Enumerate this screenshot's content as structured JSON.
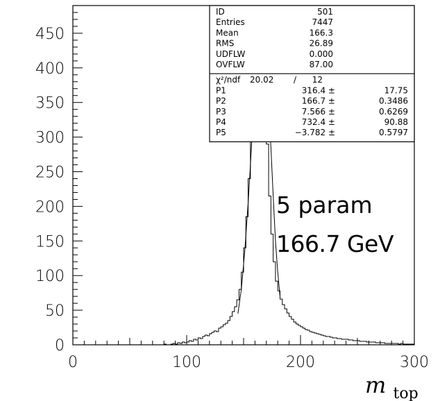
{
  "chart_data": {
    "type": "histogram",
    "x_axis": {
      "min": 0,
      "max": 300,
      "ticks": [
        "0",
        "100",
        "200",
        "300"
      ],
      "label_main": "m",
      "label_sub": "top"
    },
    "y_axis": {
      "min": 0,
      "max": 490,
      "ticks": [
        "0",
        "50",
        "100",
        "150",
        "200",
        "250",
        "300",
        "350",
        "400",
        "450"
      ]
    },
    "bin_width": 2,
    "bins_x_start": 0,
    "bin_counts": [
      0,
      0,
      0,
      0,
      0,
      0,
      0,
      0,
      0,
      0,
      0,
      0,
      0,
      0,
      0,
      0,
      0,
      0,
      0,
      0,
      0,
      0,
      0,
      0,
      0,
      0,
      0,
      0,
      0,
      0,
      0,
      0,
      0,
      0,
      0,
      0,
      0,
      0,
      0,
      0,
      1,
      0,
      0,
      1,
      2,
      1,
      3,
      2,
      4,
      3,
      4,
      6,
      5,
      8,
      7,
      10,
      9,
      12,
      14,
      13,
      16,
      18,
      20,
      19,
      24,
      26,
      29,
      31,
      35,
      41,
      48,
      55,
      65,
      80,
      105,
      140,
      185,
      240,
      300,
      360,
      405,
      418,
      385,
      440,
      362,
      290,
      215,
      160,
      120,
      92,
      78,
      66,
      58,
      52,
      46,
      41,
      37,
      33,
      30,
      28,
      26,
      24,
      22,
      21,
      19,
      18,
      17,
      16,
      15,
      14,
      13,
      12,
      12,
      11,
      10,
      10,
      9,
      9,
      8,
      8,
      8,
      7,
      7,
      6,
      6,
      6,
      5,
      5,
      5,
      4,
      4,
      4,
      4,
      3,
      3,
      3,
      3,
      2,
      2,
      2,
      2,
      2,
      2,
      1,
      2,
      1,
      1,
      1,
      1,
      1
    ],
    "fit_curve": {
      "x": [
        145,
        148,
        151,
        154,
        156,
        158,
        160,
        162,
        164,
        166,
        167,
        168,
        170,
        172,
        174,
        176,
        178,
        180,
        182
      ],
      "y": [
        45,
        80,
        135,
        205,
        260,
        318,
        365,
        395,
        412,
        418,
        417,
        412,
        392,
        350,
        285,
        215,
        150,
        105,
        70
      ]
    },
    "stats_box": {
      "rows": [
        {
          "label": "ID",
          "value": "501"
        },
        {
          "label": "Entries",
          "value": "7447"
        },
        {
          "label": "Mean",
          "value": "166.3"
        },
        {
          "label": "RMS",
          "value": "26.89"
        },
        {
          "label": "UDFLW",
          "value": "0.000"
        },
        {
          "label": "OVFLW",
          "value": "87.00"
        }
      ],
      "chi2_label": "χ²/ndf",
      "chi2_value": "20.02",
      "chi2_sep": "/",
      "ndf": "12",
      "params": [
        {
          "label": "P1",
          "value": "316.4 ±",
          "error": "17.75"
        },
        {
          "label": "P2",
          "value": "166.7 ±",
          "error": "0.3486"
        },
        {
          "label": "P3",
          "value": "7.566 ±",
          "error": "0.6269"
        },
        {
          "label": "P4",
          "value": "732.4 ±",
          "error": "90.88"
        },
        {
          "label": "P5",
          "value": "−3.782 ±",
          "error": "0.5797"
        }
      ]
    },
    "annotations": [
      "5 param",
      "166.7 GeV"
    ]
  }
}
